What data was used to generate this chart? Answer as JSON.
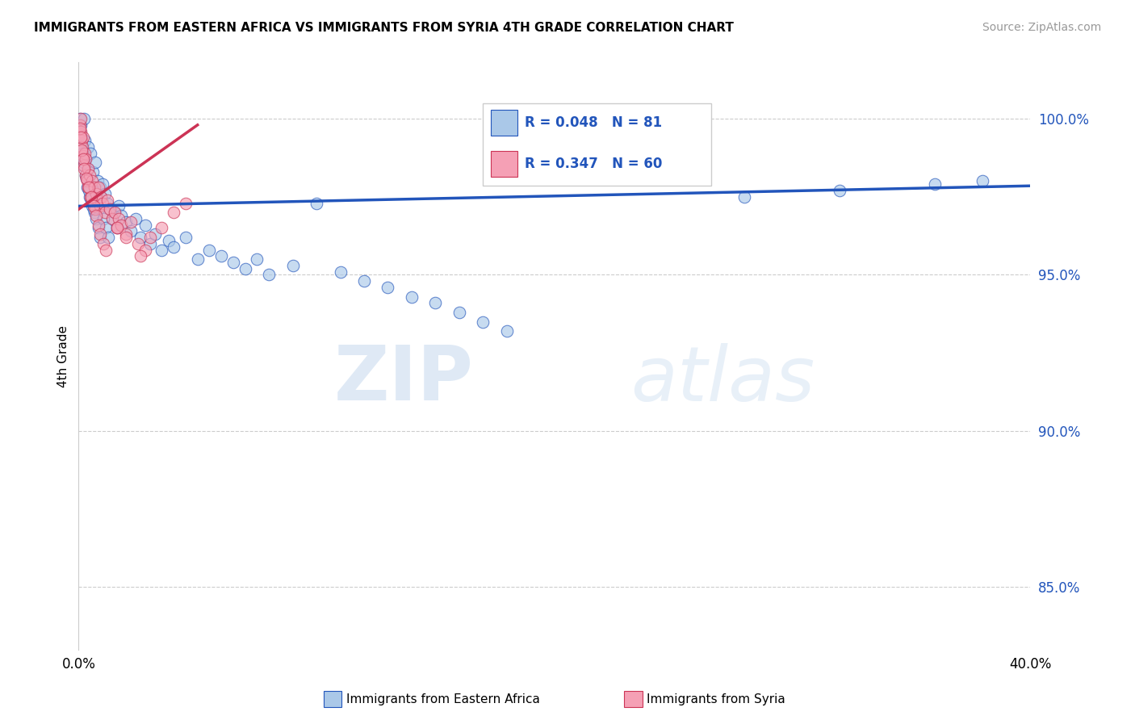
{
  "title": "IMMIGRANTS FROM EASTERN AFRICA VS IMMIGRANTS FROM SYRIA 4TH GRADE CORRELATION CHART",
  "source": "Source: ZipAtlas.com",
  "ylabel": "4th Grade",
  "xlim": [
    0.0,
    40.0
  ],
  "ylim": [
    83.0,
    101.8
  ],
  "yticks": [
    85.0,
    90.0,
    95.0,
    100.0
  ],
  "ytick_labels": [
    "85.0%",
    "90.0%",
    "95.0%",
    "100.0%"
  ],
  "legend_r_blue": "R = 0.048",
  "legend_n_blue": "N = 81",
  "legend_r_pink": "R = 0.347",
  "legend_n_pink": "N = 60",
  "blue_color": "#aac8e8",
  "pink_color": "#f5a0b5",
  "blue_line_color": "#2255bb",
  "pink_line_color": "#cc3355",
  "label_blue": "Immigrants from Eastern Africa",
  "label_pink": "Immigrants from Syria",
  "watermark_zip": "ZIP",
  "watermark_atlas": "atlas",
  "blue_scatter_x": [
    0.05,
    0.08,
    0.1,
    0.12,
    0.15,
    0.18,
    0.2,
    0.22,
    0.25,
    0.28,
    0.3,
    0.35,
    0.38,
    0.4,
    0.45,
    0.5,
    0.55,
    0.6,
    0.65,
    0.7,
    0.75,
    0.8,
    0.85,
    0.9,
    0.95,
    1.0,
    1.1,
    1.2,
    1.3,
    1.4,
    1.5,
    1.6,
    1.7,
    1.8,
    2.0,
    2.2,
    2.4,
    2.6,
    2.8,
    3.0,
    3.2,
    3.5,
    3.8,
    4.0,
    4.5,
    5.0,
    5.5,
    6.0,
    6.5,
    7.0,
    7.5,
    8.0,
    9.0,
    10.0,
    11.0,
    12.0,
    13.0,
    14.0,
    15.0,
    16.0,
    17.0,
    18.0,
    0.06,
    0.09,
    0.13,
    0.17,
    0.23,
    0.32,
    0.42,
    0.52,
    0.62,
    0.72,
    0.82,
    0.92,
    1.05,
    1.15,
    1.25,
    28.0,
    32.0,
    36.0,
    38.0
  ],
  "blue_scatter_y": [
    100.0,
    99.8,
    99.5,
    99.2,
    99.0,
    98.8,
    98.5,
    100.0,
    99.3,
    98.7,
    98.2,
    97.8,
    99.1,
    98.4,
    97.5,
    98.9,
    97.2,
    98.3,
    97.0,
    98.6,
    97.4,
    98.0,
    97.1,
    97.8,
    97.5,
    97.9,
    97.6,
    97.3,
    97.1,
    96.8,
    97.0,
    96.5,
    97.2,
    96.9,
    96.7,
    96.4,
    96.8,
    96.2,
    96.6,
    96.0,
    96.3,
    95.8,
    96.1,
    95.9,
    96.2,
    95.5,
    95.8,
    95.6,
    95.4,
    95.2,
    95.5,
    95.0,
    95.3,
    97.3,
    95.1,
    94.8,
    94.6,
    94.3,
    94.1,
    93.8,
    93.5,
    93.2,
    99.6,
    99.4,
    99.1,
    98.9,
    98.6,
    98.1,
    97.7,
    97.4,
    97.1,
    96.8,
    96.5,
    96.2,
    96.8,
    96.5,
    96.2,
    97.5,
    97.7,
    97.9,
    98.0
  ],
  "pink_scatter_x": [
    0.04,
    0.06,
    0.08,
    0.1,
    0.12,
    0.15,
    0.18,
    0.2,
    0.22,
    0.25,
    0.28,
    0.3,
    0.35,
    0.38,
    0.4,
    0.45,
    0.5,
    0.55,
    0.6,
    0.65,
    0.7,
    0.75,
    0.8,
    0.85,
    0.9,
    0.95,
    1.0,
    1.1,
    1.2,
    1.3,
    1.4,
    1.5,
    1.6,
    1.7,
    1.8,
    2.0,
    2.2,
    2.5,
    2.8,
    3.0,
    3.5,
    4.0,
    4.5,
    0.05,
    0.09,
    0.14,
    0.19,
    0.24,
    0.32,
    0.42,
    0.52,
    0.62,
    0.72,
    0.82,
    0.92,
    1.05,
    1.15,
    1.6,
    2.0,
    2.6
  ],
  "pink_scatter_y": [
    99.5,
    99.8,
    100.0,
    99.6,
    99.3,
    99.1,
    98.8,
    99.4,
    98.5,
    98.9,
    98.2,
    98.7,
    98.0,
    98.4,
    97.8,
    98.2,
    97.5,
    98.0,
    97.3,
    97.8,
    97.1,
    97.6,
    97.4,
    97.8,
    97.2,
    97.5,
    97.3,
    97.0,
    97.4,
    97.1,
    96.8,
    97.0,
    96.5,
    96.8,
    96.6,
    96.3,
    96.7,
    96.0,
    95.8,
    96.2,
    96.5,
    97.0,
    97.3,
    99.7,
    99.4,
    99.0,
    98.7,
    98.4,
    98.1,
    97.8,
    97.5,
    97.2,
    96.9,
    96.6,
    96.3,
    96.0,
    95.8,
    96.5,
    96.2,
    95.6
  ],
  "blue_trend_x": [
    0.0,
    40.0
  ],
  "blue_trend_y": [
    97.2,
    97.85
  ],
  "pink_trend_x": [
    0.0,
    5.0
  ],
  "pink_trend_y": [
    97.1,
    99.8
  ]
}
